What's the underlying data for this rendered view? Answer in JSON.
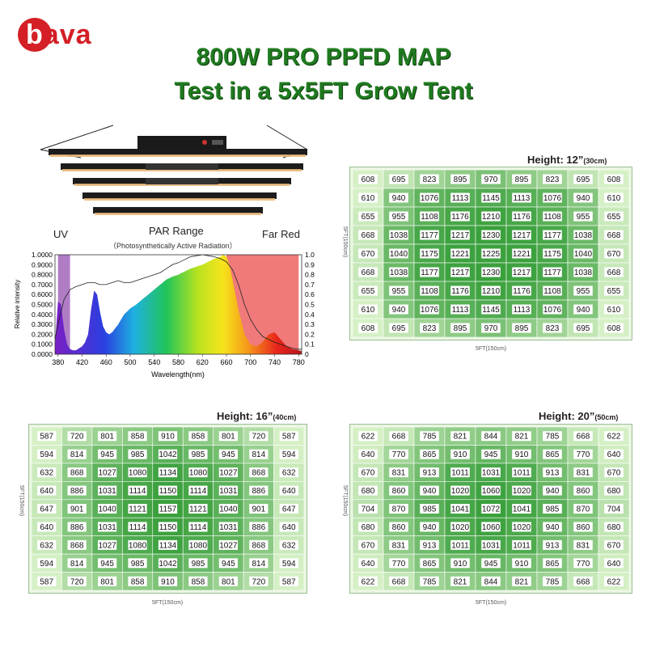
{
  "brand": {
    "logo_text_first": "b",
    "logo_text_rest": "ava"
  },
  "title_line1": "800W PRO PPFD MAP",
  "title_line2": "Test in a 5x5FT Grow Tent",
  "chart_data": [
    {
      "type": "line",
      "region_labels": {
        "uv": "UV",
        "par": "PAR Range",
        "par_sub": "（Photosynthetically Active Radiation）",
        "far_red": "Far Red"
      },
      "xlabel": "Wavelength(nm)",
      "ylabel": "Relative intensity",
      "x_ticks": [
        380,
        420,
        460,
        500,
        540,
        580,
        620,
        660,
        700,
        740,
        780
      ],
      "y_ticks_left": [
        "0.0000",
        "0.1000",
        "0.2000",
        "0.3000",
        "0.4000",
        "0.5000",
        "0.6000",
        "0.7000",
        "0.8000",
        "0.9000",
        "1.0000"
      ],
      "y_ticks_right": [
        "0",
        "0.1",
        "0.2",
        "0.3",
        "0.4",
        "0.5",
        "0.6",
        "0.7",
        "0.8",
        "0.9",
        "1.0"
      ],
      "xlim": [
        375,
        785
      ],
      "ylim": [
        0,
        1.0
      ],
      "shaded_regions": [
        {
          "name": "uv",
          "from": 380,
          "to": 400,
          "color": "#b07cc6"
        },
        {
          "name": "far_red",
          "from": 660,
          "to": 780,
          "color": "#f07a7a"
        }
      ],
      "series": [
        {
          "x": [
            375,
            380,
            385,
            390,
            395,
            400,
            405,
            410,
            415,
            420,
            425,
            430,
            435,
            440,
            445,
            450,
            455,
            460,
            465,
            470,
            480,
            490,
            500,
            510,
            520,
            530,
            540,
            550,
            560,
            570,
            580,
            590,
            600,
            610,
            620,
            630,
            640,
            650,
            655,
            660,
            665,
            670,
            680,
            690,
            700,
            710,
            720,
            730,
            740,
            750,
            760,
            770,
            780,
            785
          ],
          "y": [
            0.1,
            0.53,
            0.5,
            0.25,
            0.1,
            0.05,
            0.04,
            0.04,
            0.06,
            0.08,
            0.12,
            0.2,
            0.45,
            0.64,
            0.6,
            0.42,
            0.28,
            0.22,
            0.2,
            0.22,
            0.3,
            0.4,
            0.46,
            0.5,
            0.55,
            0.6,
            0.65,
            0.7,
            0.75,
            0.78,
            0.8,
            0.83,
            0.86,
            0.88,
            0.9,
            0.93,
            0.96,
            0.98,
            1.0,
            0.98,
            0.9,
            0.75,
            0.45,
            0.2,
            0.1,
            0.08,
            0.12,
            0.2,
            0.22,
            0.15,
            0.08,
            0.05,
            0.04,
            0.03
          ]
        },
        {
          "x": [
            375,
            380,
            390,
            400,
            410,
            420,
            430,
            440,
            450,
            460,
            470,
            480,
            490,
            500,
            510,
            520,
            530,
            540,
            550,
            560,
            570,
            580,
            590,
            600,
            610,
            620,
            630,
            640,
            650,
            660,
            670,
            680,
            690,
            700,
            710,
            720,
            730,
            740,
            750,
            760,
            770,
            780,
            785
          ],
          "y": [
            0.15,
            0.3,
            0.55,
            0.65,
            0.68,
            0.7,
            0.72,
            0.72,
            0.7,
            0.7,
            0.72,
            0.74,
            0.72,
            0.72,
            0.74,
            0.76,
            0.78,
            0.8,
            0.82,
            0.86,
            0.9,
            0.92,
            0.95,
            0.98,
            0.99,
            1.0,
            0.99,
            0.98,
            0.96,
            0.93,
            0.85,
            0.7,
            0.5,
            0.35,
            0.25,
            0.18,
            0.15,
            0.12,
            0.1,
            0.08,
            0.06,
            0.05,
            0.05
          ]
        }
      ]
    },
    {
      "type": "heatmap",
      "title": "Height: 12”",
      "unit": "(30cm)",
      "xlabel": "5FT(150cm)",
      "ylabel": "5FT(150cm)",
      "values": [
        [
          608,
          695,
          823,
          895,
          970,
          895,
          823,
          695,
          608
        ],
        [
          610,
          940,
          1076,
          1113,
          1145,
          1113,
          1076,
          940,
          610
        ],
        [
          655,
          955,
          1108,
          1176,
          1210,
          1176,
          1108,
          955,
          655
        ],
        [
          668,
          1038,
          1177,
          1217,
          1230,
          1217,
          1177,
          1038,
          668
        ],
        [
          670,
          1040,
          1175,
          1221,
          1225,
          1221,
          1175,
          1040,
          670
        ],
        [
          668,
          1038,
          1177,
          1217,
          1230,
          1217,
          1177,
          1038,
          668
        ],
        [
          655,
          955,
          1108,
          1176,
          1210,
          1176,
          1108,
          955,
          655
        ],
        [
          610,
          940,
          1076,
          1113,
          1145,
          1113,
          1076,
          940,
          610
        ],
        [
          608,
          695,
          823,
          895,
          970,
          895,
          823,
          695,
          608
        ]
      ]
    },
    {
      "type": "heatmap",
      "title": "Height: 16”",
      "unit": "(40cm)",
      "xlabel": "5FT(150cm)",
      "ylabel": "5FT(150cm)",
      "values": [
        [
          587,
          720,
          801,
          858,
          910,
          858,
          801,
          720,
          587
        ],
        [
          594,
          814,
          945,
          985,
          1042,
          985,
          945,
          814,
          594
        ],
        [
          632,
          868,
          1027,
          1080,
          1134,
          1080,
          1027,
          868,
          632
        ],
        [
          640,
          886,
          1031,
          1114,
          1150,
          1114,
          1031,
          886,
          640
        ],
        [
          647,
          901,
          1040,
          1121,
          1157,
          1121,
          1040,
          901,
          647
        ],
        [
          640,
          886,
          1031,
          1114,
          1150,
          1114,
          1031,
          886,
          640
        ],
        [
          632,
          868,
          1027,
          1080,
          1134,
          1080,
          1027,
          868,
          632
        ],
        [
          594,
          814,
          945,
          985,
          1042,
          985,
          945,
          814,
          594
        ],
        [
          587,
          720,
          801,
          858,
          910,
          858,
          801,
          720,
          587
        ]
      ]
    },
    {
      "type": "heatmap",
      "title": "Height: 20”",
      "unit": "(50cm)",
      "xlabel": "5FT(150cm)",
      "ylabel": "5FT(150cm)",
      "values": [
        [
          622,
          668,
          785,
          821,
          844,
          821,
          785,
          668,
          622
        ],
        [
          640,
          770,
          865,
          910,
          945,
          910,
          865,
          770,
          640
        ],
        [
          670,
          831,
          913,
          1011,
          1031,
          1011,
          913,
          831,
          670
        ],
        [
          680,
          860,
          940,
          1020,
          1060,
          1020,
          940,
          860,
          680
        ],
        [
          704,
          870,
          985,
          1041,
          1072,
          1041,
          985,
          870,
          704
        ],
        [
          680,
          860,
          940,
          1020,
          1060,
          1020,
          940,
          860,
          680
        ],
        [
          670,
          831,
          913,
          1011,
          1031,
          1011,
          913,
          831,
          670
        ],
        [
          640,
          770,
          865,
          910,
          945,
          910,
          865,
          770,
          640
        ],
        [
          622,
          668,
          785,
          821,
          844,
          821,
          785,
          668,
          622
        ]
      ]
    }
  ]
}
